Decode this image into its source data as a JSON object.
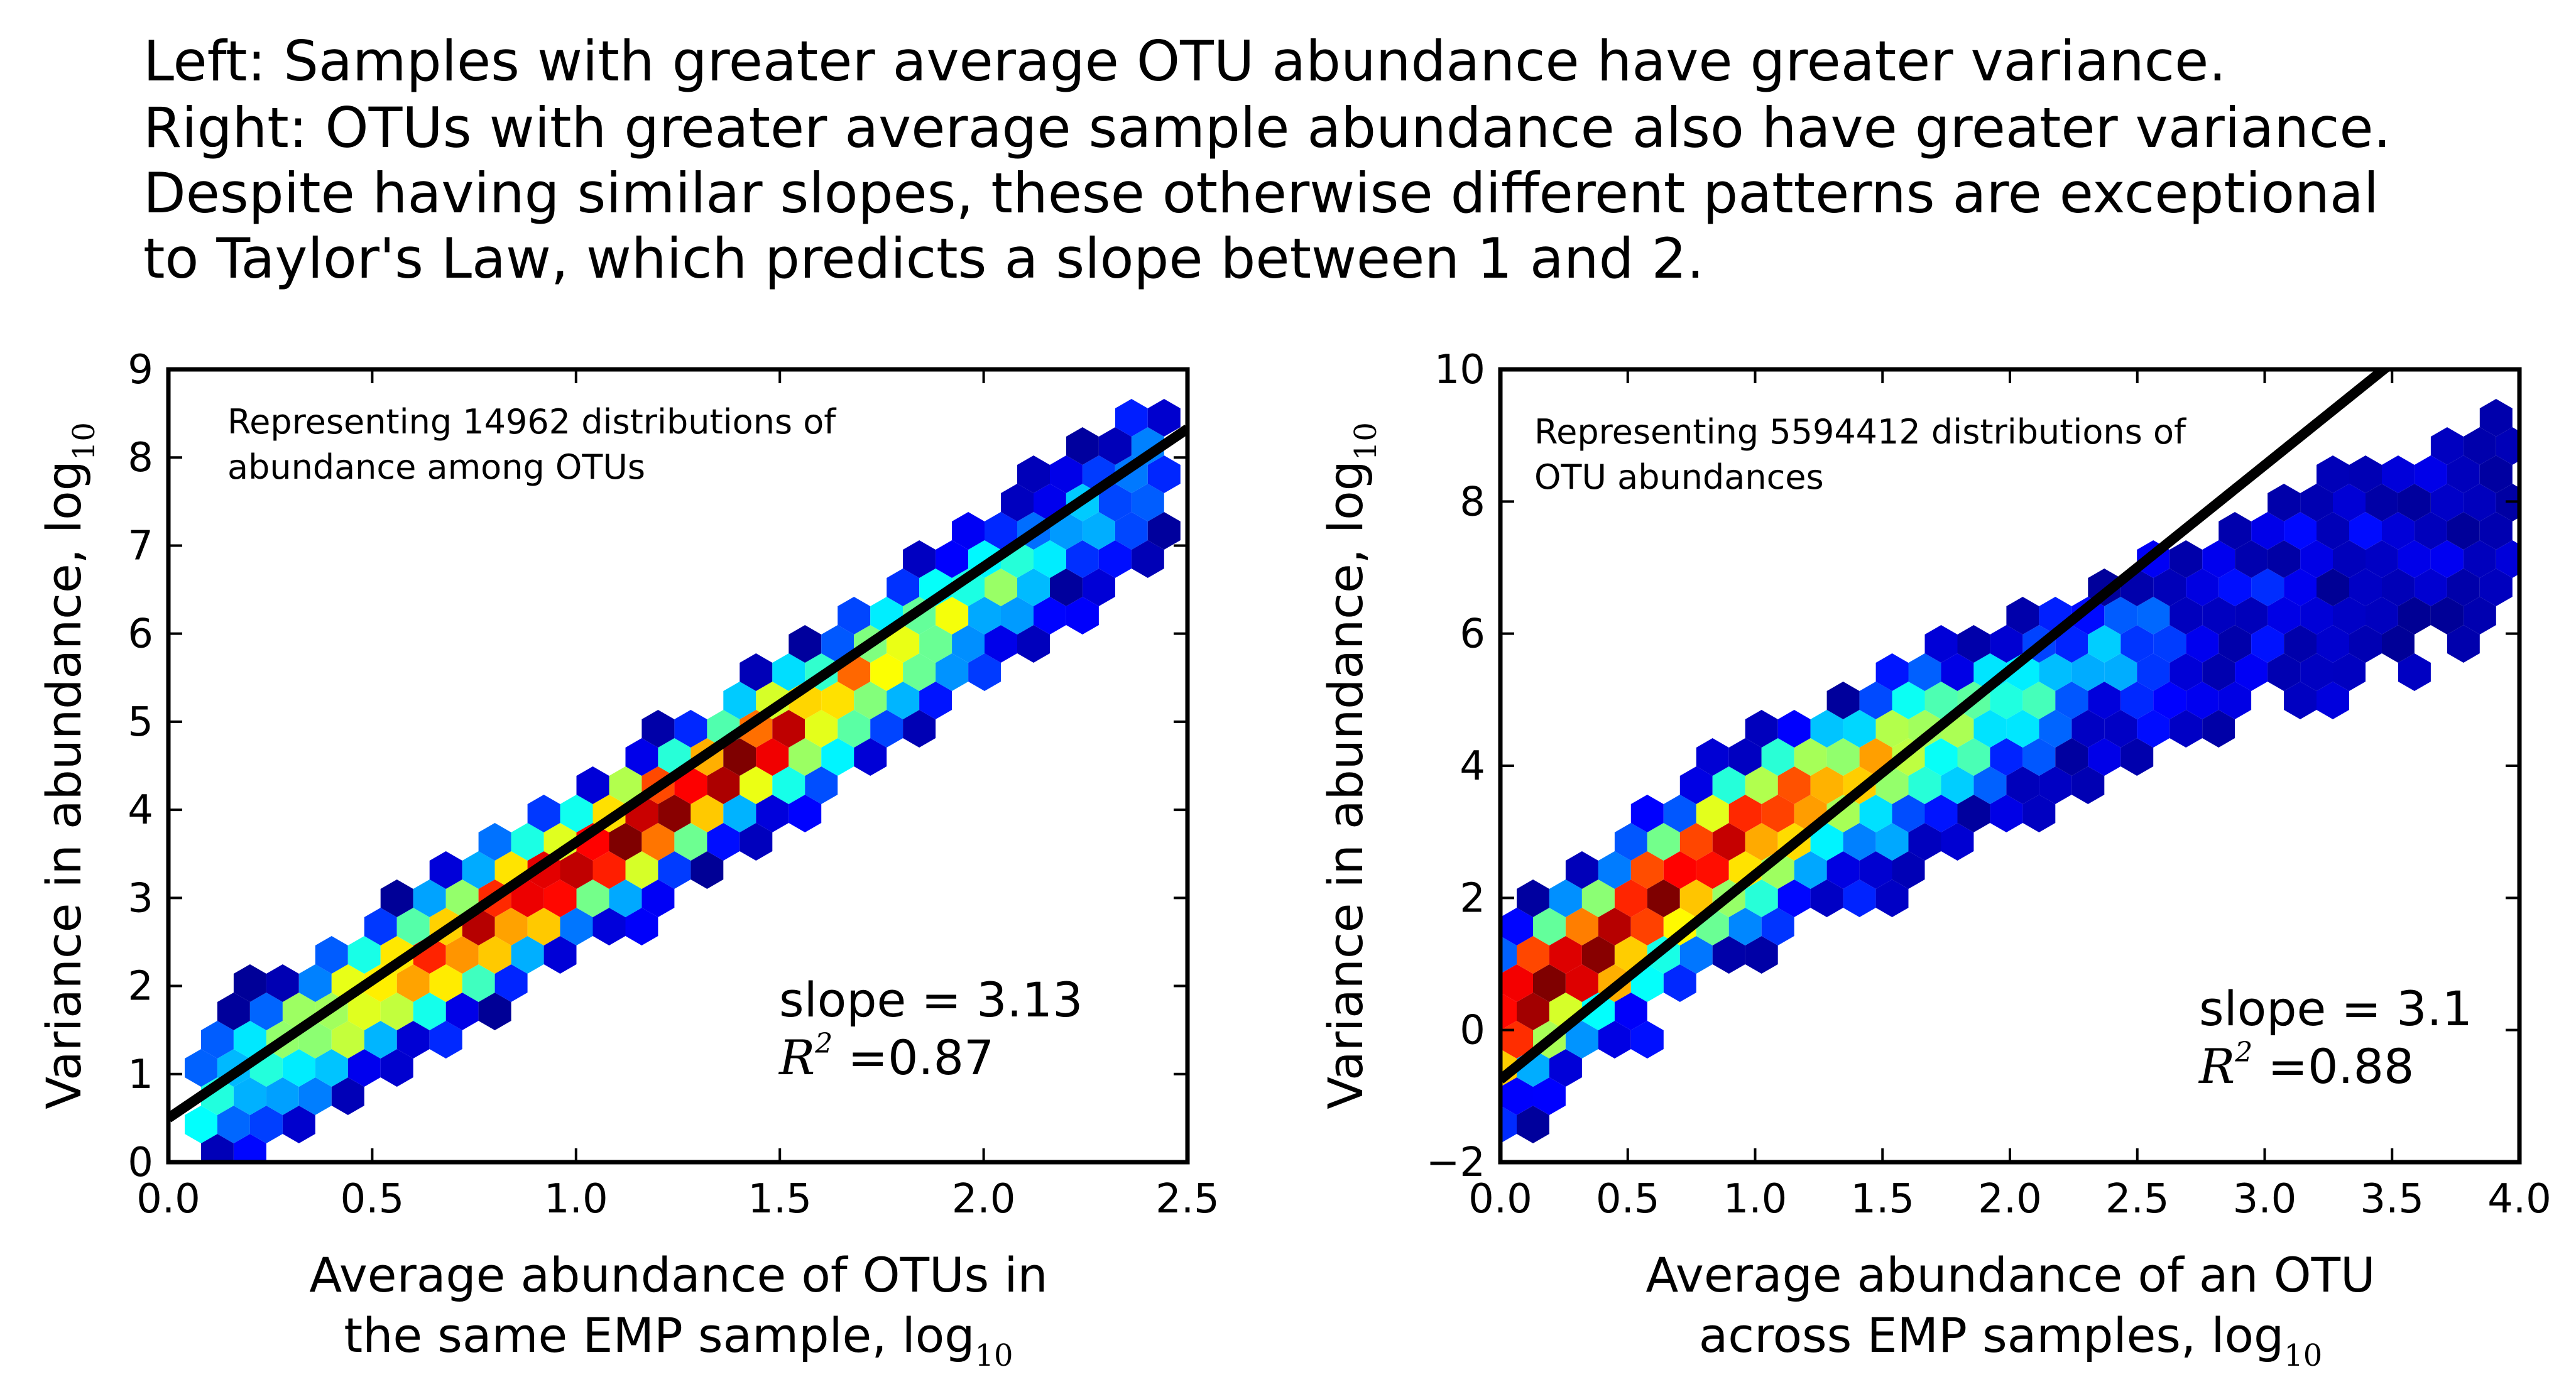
{
  "caption": [
    "Left: Samples with greater average OTU abundance have greater variance.",
    "Right: OTUs with greater average sample abundance also have greater variance.",
    "Despite having similar slopes, these otherwise different patterns are exceptional",
    "to Taylor's Law, which predicts a slope between 1 and 2."
  ],
  "colors": {
    "fit_line": "#000000",
    "colormap": [
      "#00007f",
      "#0000ff",
      "#007fff",
      "#00ffff",
      "#7fff7f",
      "#ffff00",
      "#ff7f00",
      "#ff0000",
      "#7f0000"
    ]
  },
  "chart_data": [
    {
      "type": "hexbin",
      "xlabel": "Average abundance of OTUs in",
      "xlabel_line2": "the same EMP sample, log",
      "xlabel_sub": "10",
      "ylabel": "Variance in abundance, log",
      "ylabel_sub": "10",
      "xlim": [
        0.0,
        2.5
      ],
      "ylim": [
        0,
        9
      ],
      "xticks": [
        "0.0",
        "0.5",
        "1.0",
        "1.5",
        "2.0",
        "2.5"
      ],
      "yticks": [
        "0",
        "1",
        "2",
        "3",
        "4",
        "5",
        "6",
        "7",
        "8",
        "9"
      ],
      "annotation": [
        "Representing 14962 distributions of",
        "abundance among OTUs"
      ],
      "slope_text": "slope = 3.13",
      "r2_label": "R",
      "r2_exp": "2",
      "r2_value": " =0.87",
      "fit": {
        "slope": 3.13,
        "intercept": 0.5
      },
      "density": {
        "ridge": [
          [
            0.1,
            0.75
          ],
          [
            1.7,
            5.45
          ],
          [
            2.3,
            7.5
          ]
        ],
        "peak": [
          1.1,
          4.1
        ],
        "upper_width": 0.95,
        "lower_width": 1.1,
        "x_range": [
          0.08,
          2.45
        ]
      }
    },
    {
      "type": "hexbin",
      "xlabel": "Average abundance of an OTU",
      "xlabel_line2": "across EMP samples, log",
      "xlabel_sub": "10",
      "ylabel": "Variance in abundance, log",
      "ylabel_sub": "10",
      "xlim": [
        0.0,
        4.0
      ],
      "ylim": [
        -2,
        10
      ],
      "xticks": [
        "0.0",
        "0.5",
        "1.0",
        "1.5",
        "2.0",
        "2.5",
        "3.0",
        "3.5",
        "4.0"
      ],
      "yticks": [
        "−2",
        "0",
        "2",
        "4",
        "6",
        "8",
        "10"
      ],
      "annotation": [
        "Representing 5594412 distributions of",
        "OTU abundances"
      ],
      "slope_text": "slope = 3.1",
      "r2_label": "R",
      "r2_exp": "2",
      "r2_value": " =0.88",
      "fit": {
        "slope": 3.1,
        "intercept": -0.75
      },
      "density": {
        "ridge": [
          [
            0.0,
            0.3
          ],
          [
            1.0,
            3.2
          ],
          [
            2.0,
            5.0
          ],
          [
            3.0,
            6.8
          ],
          [
            4.0,
            8.2
          ]
        ],
        "peak": [
          0.35,
          1.1
        ],
        "upper_width": 1.3,
        "lower_width": 2.0,
        "x_range": [
          0.0,
          4.0
        ]
      }
    }
  ]
}
